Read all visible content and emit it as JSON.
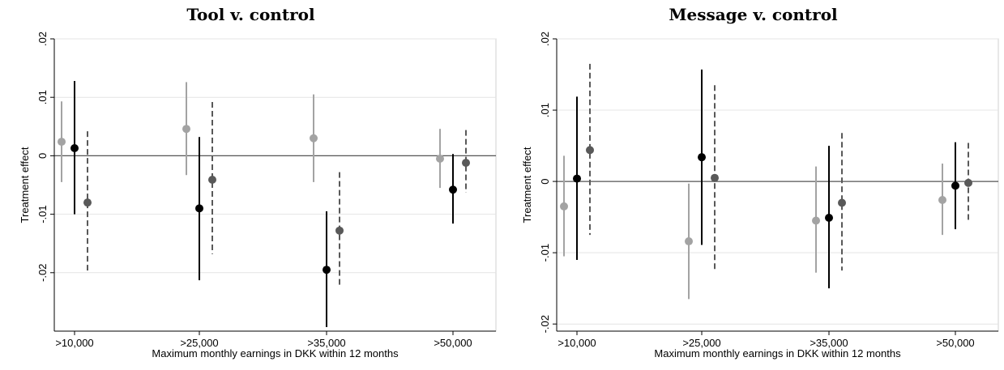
{
  "chart_data": [
    {
      "type": "scatter",
      "title": "Tool v. control",
      "xlabel": "Maximum monthly earnings in DKK within 12 months",
      "ylabel": "Treatment effect",
      "categories": [
        ">10,000",
        ">25,000",
        ">35,000",
        ">50,000"
      ],
      "ylim": [
        -0.03,
        0.02
      ],
      "yticks": [
        -0.02,
        -0.01,
        0,
        0.01,
        0.02
      ],
      "ytick_labels": [
        "-.02",
        "-.01",
        "0",
        ".01",
        ".02"
      ],
      "grid": true,
      "zero_line": true,
      "series": [
        {
          "color": "#a3a3a3",
          "style": "solid",
          "points": [
            {
              "est": 0.0024,
              "lo": -0.0045,
              "hi": 0.0093
            },
            {
              "est": 0.0046,
              "lo": -0.0033,
              "hi": 0.0126
            },
            {
              "est": 0.003,
              "lo": -0.0045,
              "hi": 0.0105
            },
            {
              "est": -0.0005,
              "lo": -0.0055,
              "hi": 0.0046
            }
          ]
        },
        {
          "color": "#000000",
          "style": "solid",
          "points": [
            {
              "est": 0.0013,
              "lo": -0.01,
              "hi": 0.0128
            },
            {
              "est": -0.009,
              "lo": -0.0213,
              "hi": 0.0032
            },
            {
              "est": -0.0195,
              "lo": -0.0293,
              "hi": -0.0095
            },
            {
              "est": -0.0058,
              "lo": -0.0116,
              "hi": 0.0003
            }
          ]
        },
        {
          "color": "#595959",
          "style": "dashed",
          "points": [
            {
              "est": -0.008,
              "lo": -0.0198,
              "hi": 0.0042
            },
            {
              "est": -0.0041,
              "lo": -0.0168,
              "hi": 0.0092
            },
            {
              "est": -0.0128,
              "lo": -0.0225,
              "hi": -0.0028
            },
            {
              "est": -0.0012,
              "lo": -0.0063,
              "hi": 0.0044
            }
          ]
        }
      ]
    },
    {
      "type": "scatter",
      "title": "Message v. control",
      "xlabel": "Maximum monthly earnings in DKK within 12 months",
      "ylabel": "Treatment effect",
      "categories": [
        ">10,000",
        ">25,000",
        ">35,000",
        ">50,000"
      ],
      "ylim": [
        -0.021,
        0.02
      ],
      "yticks": [
        -0.02,
        -0.01,
        0,
        0.01,
        0.02
      ],
      "ytick_labels": [
        "-.02",
        "-.01",
        "0",
        ".01",
        ".02"
      ],
      "grid": true,
      "zero_line": true,
      "series": [
        {
          "color": "#a3a3a3",
          "style": "solid",
          "points": [
            {
              "est": -0.0035,
              "lo": -0.0105,
              "hi": 0.0036
            },
            {
              "est": -0.0084,
              "lo": -0.0165,
              "hi": -0.0003
            },
            {
              "est": -0.0055,
              "lo": -0.0128,
              "hi": 0.0021
            },
            {
              "est": -0.0026,
              "lo": -0.0075,
              "hi": 0.0025
            }
          ]
        },
        {
          "color": "#000000",
          "style": "solid",
          "points": [
            {
              "est": 0.0004,
              "lo": -0.011,
              "hi": 0.0119
            },
            {
              "est": 0.0034,
              "lo": -0.0089,
              "hi": 0.0157
            },
            {
              "est": -0.0051,
              "lo": -0.015,
              "hi": 0.005
            },
            {
              "est": -0.0006,
              "lo": -0.0067,
              "hi": 0.0055
            }
          ]
        },
        {
          "color": "#595959",
          "style": "dashed",
          "points": [
            {
              "est": 0.0044,
              "lo": -0.0075,
              "hi": 0.0165
            },
            {
              "est": 0.0005,
              "lo": -0.0124,
              "hi": 0.0135
            },
            {
              "est": -0.003,
              "lo": -0.0125,
              "hi": 0.0068
            },
            {
              "est": -0.0002,
              "lo": -0.0057,
              "hi": 0.0054
            }
          ]
        }
      ]
    }
  ]
}
